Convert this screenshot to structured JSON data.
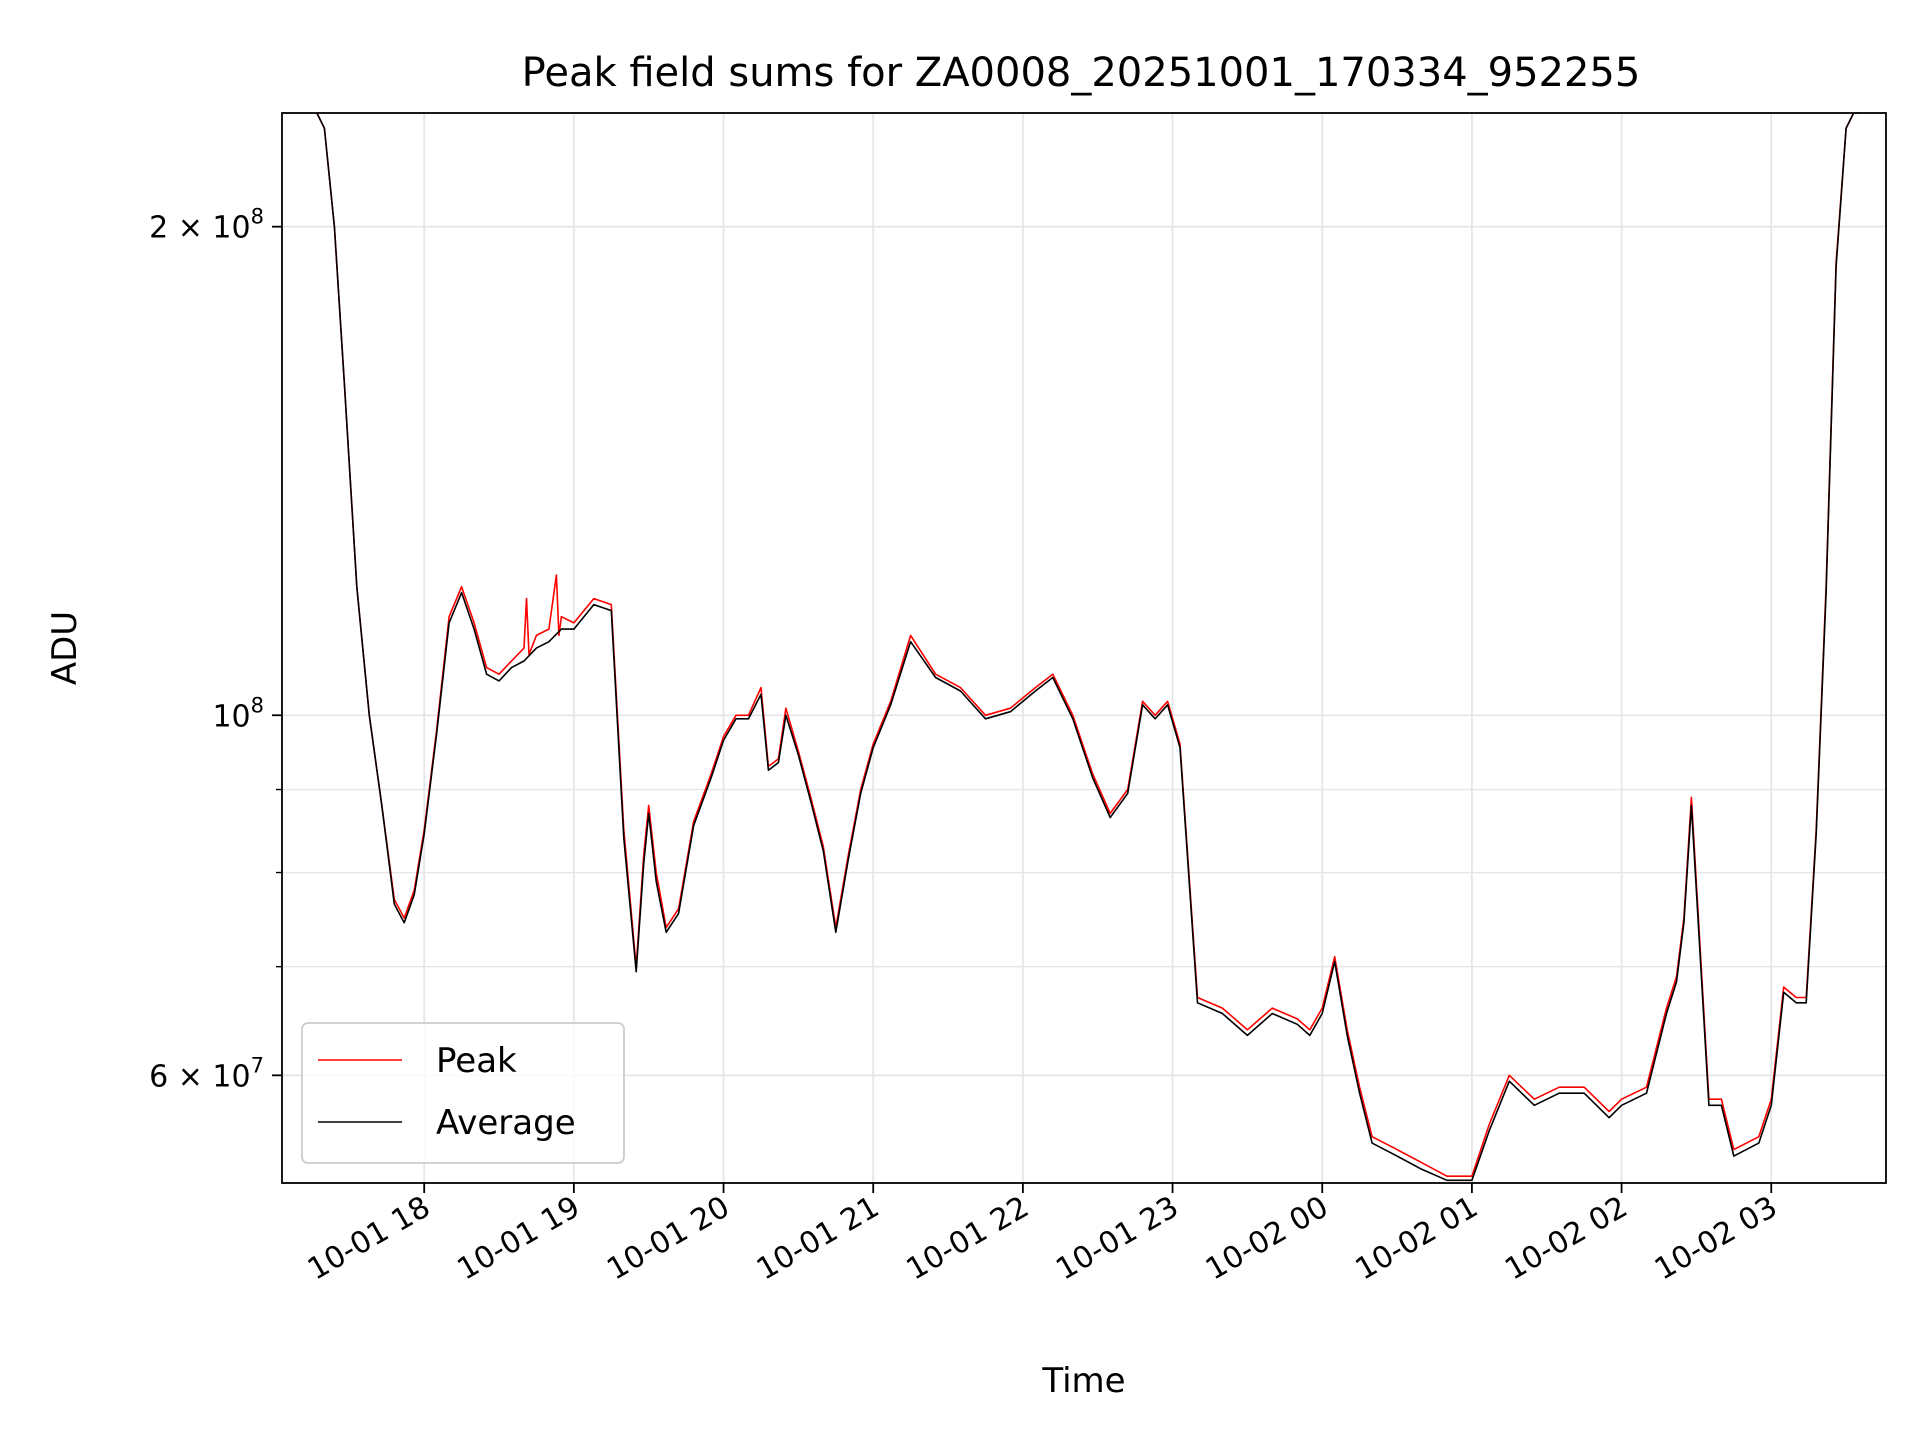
{
  "chart_data": {
    "type": "line",
    "title": "Peak field sums for ZA0008_20251001_170334_952255",
    "xlabel": "Time",
    "ylabel": "ADU",
    "yscale": "log",
    "ylim": [
      51500000,
      235000000
    ],
    "xlim": [
      "10-01 17:03",
      "10-02 03:46"
    ],
    "grid": true,
    "legend": "lower-left",
    "x_ticks": [
      "10-01 18",
      "10-01 19",
      "10-01 20",
      "10-01 21",
      "10-01 22",
      "10-01 23",
      "10-02 00",
      "10-02 01",
      "10-02 02",
      "10-02 03"
    ],
    "y_major_ticks": [
      {
        "value": 60000000,
        "mantissa": "6",
        "exponent": "7"
      },
      {
        "value": 100000000,
        "mantissa": "",
        "exponent": "8"
      },
      {
        "value": 200000000,
        "mantissa": "2",
        "exponent": "8"
      }
    ],
    "y_minor_ticks": [
      70000000,
      80000000,
      90000000
    ],
    "series": [
      {
        "name": "Peak",
        "color": "#ff0000",
        "x": [
          "10-01 17:17",
          "10-01 17:20",
          "10-01 17:24",
          "10-01 17:28",
          "10-01 17:33",
          "10-01 17:38",
          "10-01 17:43",
          "10-01 17:48",
          "10-01 17:52",
          "10-01 17:56",
          "10-01 18:00",
          "10-01 18:05",
          "10-01 18:10",
          "10-01 18:15",
          "10-01 18:20",
          "10-01 18:25",
          "10-01 18:30",
          "10-01 18:35",
          "10-01 18:40",
          "10-01 18:41",
          "10-01 18:42",
          "10-01 18:45",
          "10-01 18:50",
          "10-01 18:53",
          "10-01 18:54",
          "10-01 18:55",
          "10-01 19:00",
          "10-01 19:08",
          "10-01 19:15",
          "10-01 19:20",
          "10-01 19:25",
          "10-01 19:28",
          "10-01 19:30",
          "10-01 19:33",
          "10-01 19:37",
          "10-01 19:42",
          "10-01 19:48",
          "10-01 19:55",
          "10-01 20:00",
          "10-01 20:05",
          "10-01 20:10",
          "10-01 20:15",
          "10-01 20:18",
          "10-01 20:22",
          "10-01 20:25",
          "10-01 20:30",
          "10-01 20:35",
          "10-01 20:40",
          "10-01 20:45",
          "10-01 20:50",
          "10-01 20:55",
          "10-01 21:00",
          "10-01 21:07",
          "10-01 21:15",
          "10-01 21:25",
          "10-01 21:35",
          "10-01 21:45",
          "10-01 21:55",
          "10-01 22:05",
          "10-01 22:12",
          "10-01 22:20",
          "10-01 22:28",
          "10-01 22:35",
          "10-01 22:42",
          "10-01 22:48",
          "10-01 22:53",
          "10-01 22:58",
          "10-01 23:03",
          "10-01 23:10",
          "10-01 23:20",
          "10-01 23:30",
          "10-01 23:40",
          "10-01 23:50",
          "10-01 23:55",
          "10-02 00:00",
          "10-02 00:05",
          "10-02 00:10",
          "10-02 00:15",
          "10-02 00:20",
          "10-02 00:30",
          "10-02 00:40",
          "10-02 00:50",
          "10-02 01:00",
          "10-02 01:07",
          "10-02 01:15",
          "10-02 01:25",
          "10-02 01:35",
          "10-02 01:45",
          "10-02 01:55",
          "10-02 02:00",
          "10-02 02:10",
          "10-02 02:18",
          "10-02 02:22",
          "10-02 02:25",
          "10-02 02:28",
          "10-02 02:35",
          "10-02 02:40",
          "10-02 02:45",
          "10-02 02:55",
          "10-02 03:00",
          "10-02 03:05",
          "10-02 03:10",
          "10-02 03:14",
          "10-02 03:18",
          "10-02 03:22",
          "10-02 03:26",
          "10-02 03:30",
          "10-02 03:33",
          "10-02 03:35"
        ],
        "y": [
          235000000,
          230000000,
          200000000,
          160000000,
          120000000,
          100000000,
          88000000,
          77000000,
          75000000,
          78000000,
          85000000,
          98000000,
          115000000,
          120000000,
          114000000,
          107000000,
          106000000,
          108000000,
          110000000,
          118000000,
          109000000,
          112000000,
          113000000,
          122000000,
          112000000,
          115000000,
          114000000,
          118000000,
          117000000,
          85000000,
          70000000,
          82000000,
          88000000,
          80000000,
          74000000,
          76000000,
          86000000,
          92000000,
          97000000,
          100000000,
          100000000,
          104000000,
          93000000,
          94000000,
          101000000,
          95000000,
          89000000,
          83000000,
          74000000,
          82000000,
          90000000,
          96000000,
          102000000,
          112000000,
          106000000,
          104000000,
          100000000,
          101000000,
          104000000,
          106000000,
          100000000,
          92000000,
          87000000,
          90000000,
          102000000,
          100000000,
          102000000,
          96000000,
          67000000,
          66000000,
          64000000,
          66000000,
          65000000,
          64000000,
          66000000,
          71000000,
          64000000,
          59000000,
          55000000,
          54000000,
          53000000,
          52000000,
          52000000,
          56000000,
          60000000,
          58000000,
          59000000,
          59000000,
          57000000,
          58000000,
          59000000,
          66000000,
          69000000,
          75000000,
          89000000,
          58000000,
          58000000,
          54000000,
          55000000,
          58000000,
          68000000,
          67000000,
          67000000,
          85000000,
          120000000,
          190000000,
          230000000,
          235000000,
          235000000
        ]
      },
      {
        "name": "Average",
        "color": "#000000",
        "x": [
          "10-01 17:17",
          "10-01 17:20",
          "10-01 17:24",
          "10-01 17:28",
          "10-01 17:33",
          "10-01 17:38",
          "10-01 17:43",
          "10-01 17:48",
          "10-01 17:52",
          "10-01 17:56",
          "10-01 18:00",
          "10-01 18:05",
          "10-01 18:10",
          "10-01 18:15",
          "10-01 18:20",
          "10-01 18:25",
          "10-01 18:30",
          "10-01 18:35",
          "10-01 18:40",
          "10-01 18:45",
          "10-01 18:50",
          "10-01 18:55",
          "10-01 19:00",
          "10-01 19:08",
          "10-01 19:15",
          "10-01 19:20",
          "10-01 19:25",
          "10-01 19:28",
          "10-01 19:30",
          "10-01 19:33",
          "10-01 19:37",
          "10-01 19:42",
          "10-01 19:48",
          "10-01 19:55",
          "10-01 20:00",
          "10-01 20:05",
          "10-01 20:10",
          "10-01 20:15",
          "10-01 20:18",
          "10-01 20:22",
          "10-01 20:25",
          "10-01 20:30",
          "10-01 20:35",
          "10-01 20:40",
          "10-01 20:45",
          "10-01 20:50",
          "10-01 20:55",
          "10-01 21:00",
          "10-01 21:07",
          "10-01 21:15",
          "10-01 21:25",
          "10-01 21:35",
          "10-01 21:45",
          "10-01 21:55",
          "10-01 22:05",
          "10-01 22:12",
          "10-01 22:20",
          "10-01 22:28",
          "10-01 22:35",
          "10-01 22:42",
          "10-01 22:48",
          "10-01 22:53",
          "10-01 22:58",
          "10-01 23:03",
          "10-01 23:10",
          "10-01 23:20",
          "10-01 23:30",
          "10-01 23:40",
          "10-01 23:50",
          "10-01 23:55",
          "10-02 00:00",
          "10-02 00:05",
          "10-02 00:10",
          "10-02 00:15",
          "10-02 00:20",
          "10-02 00:30",
          "10-02 00:40",
          "10-02 00:50",
          "10-02 01:00",
          "10-02 01:07",
          "10-02 01:15",
          "10-02 01:25",
          "10-02 01:35",
          "10-02 01:45",
          "10-02 01:55",
          "10-02 02:00",
          "10-02 02:10",
          "10-02 02:18",
          "10-02 02:22",
          "10-02 02:25",
          "10-02 02:28",
          "10-02 02:35",
          "10-02 02:40",
          "10-02 02:45",
          "10-02 02:55",
          "10-02 03:00",
          "10-02 03:05",
          "10-02 03:10",
          "10-02 03:14",
          "10-02 03:18",
          "10-02 03:22",
          "10-02 03:26",
          "10-02 03:30",
          "10-02 03:33",
          "10-02 03:35"
        ],
        "y": [
          235000000,
          230000000,
          200000000,
          160000000,
          120000000,
          100000000,
          88000000,
          76500000,
          74500000,
          77500000,
          84500000,
          97500000,
          114000000,
          119000000,
          113000000,
          106000000,
          105000000,
          107000000,
          108000000,
          110000000,
          111000000,
          113000000,
          113000000,
          117000000,
          116000000,
          84000000,
          69500000,
          81000000,
          87000000,
          79000000,
          73500000,
          75500000,
          85500000,
          91500000,
          96500000,
          99500000,
          99500000,
          103000000,
          92500000,
          93500000,
          100000000,
          94500000,
          88500000,
          82500000,
          73500000,
          81500000,
          89500000,
          95500000,
          101500000,
          111000000,
          105500000,
          103500000,
          99500000,
          100500000,
          103500000,
          105500000,
          99500000,
          91500000,
          86500000,
          89500000,
          101500000,
          99500000,
          101500000,
          95500000,
          66500000,
          65500000,
          63500000,
          65500000,
          64500000,
          63500000,
          65500000,
          70500000,
          63500000,
          58500000,
          54500000,
          53500000,
          52500000,
          51700000,
          51700000,
          55500000,
          59500000,
          57500000,
          58500000,
          58500000,
          56500000,
          57500000,
          58500000,
          65500000,
          68500000,
          74500000,
          88000000,
          57500000,
          57500000,
          53500000,
          54500000,
          57500000,
          67500000,
          66500000,
          66500000,
          84500000,
          119000000,
          189000000,
          230000000,
          235000000,
          235000000
        ]
      }
    ]
  }
}
